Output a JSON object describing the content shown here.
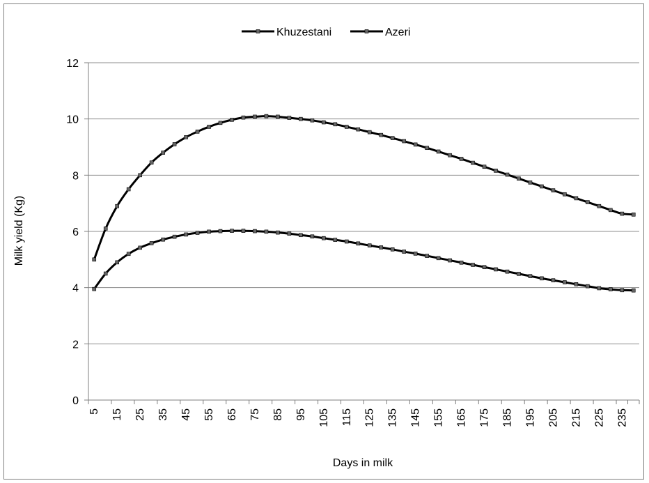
{
  "chart_data": {
    "type": "line",
    "title": "",
    "xlabel": "Days in milk",
    "ylabel": "Milk yield (Kg)",
    "ylim": [
      0,
      12
    ],
    "yticks": [
      0,
      2,
      4,
      6,
      8,
      10,
      12
    ],
    "grid": "horizontal",
    "legend_position": "top-center",
    "categories": [
      "5",
      "10",
      "15",
      "20",
      "25",
      "30",
      "35",
      "40",
      "45",
      "50",
      "55",
      "60",
      "65",
      "70",
      "75",
      "80",
      "85",
      "90",
      "95",
      "100",
      "105",
      "110",
      "115",
      "120",
      "125",
      "130",
      "135",
      "140",
      "145",
      "150",
      "155",
      "160",
      "165",
      "170",
      "175",
      "180",
      "185",
      "190",
      "195",
      "200",
      "205",
      "210",
      "215",
      "220",
      "225",
      "230",
      "235",
      "240"
    ],
    "xtick_labels": [
      "5",
      "15",
      "25",
      "35",
      "45",
      "55",
      "65",
      "75",
      "85",
      "95",
      "105",
      "115",
      "125",
      "135",
      "145",
      "155",
      "165",
      "175",
      "185",
      "195",
      "205",
      "215",
      "225",
      "235"
    ],
    "series": [
      {
        "name": "Khuzestani",
        "color": "#000000",
        "values": [
          5.0,
          6.1,
          6.9,
          7.5,
          8.0,
          8.45,
          8.8,
          9.1,
          9.35,
          9.55,
          9.72,
          9.86,
          9.97,
          10.05,
          10.08,
          10.1,
          10.08,
          10.04,
          10.0,
          9.95,
          9.88,
          9.81,
          9.72,
          9.63,
          9.53,
          9.43,
          9.32,
          9.21,
          9.09,
          8.97,
          8.84,
          8.71,
          8.58,
          8.44,
          8.3,
          8.16,
          8.02,
          7.88,
          7.74,
          7.6,
          7.46,
          7.32,
          7.18,
          7.04,
          6.9,
          6.76,
          6.63,
          6.6
        ]
      },
      {
        "name": "Azeri",
        "color": "#000000",
        "values": [
          3.95,
          4.5,
          4.9,
          5.2,
          5.42,
          5.58,
          5.71,
          5.81,
          5.89,
          5.95,
          5.99,
          6.01,
          6.02,
          6.02,
          6.01,
          5.99,
          5.96,
          5.92,
          5.87,
          5.82,
          5.76,
          5.7,
          5.64,
          5.57,
          5.5,
          5.43,
          5.36,
          5.28,
          5.21,
          5.13,
          5.05,
          4.97,
          4.89,
          4.81,
          4.73,
          4.65,
          4.57,
          4.49,
          4.41,
          4.33,
          4.26,
          4.19,
          4.12,
          4.05,
          3.98,
          3.94,
          3.91,
          3.9
        ]
      }
    ]
  }
}
